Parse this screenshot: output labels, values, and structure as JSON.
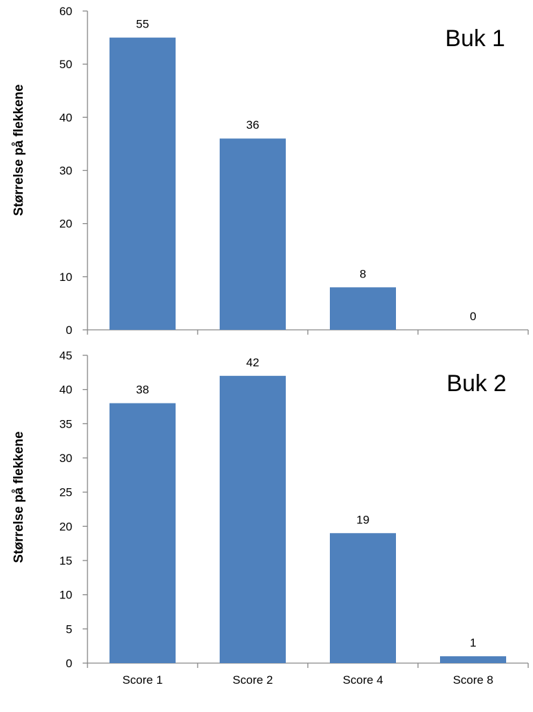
{
  "chart_data": [
    {
      "type": "bar",
      "title": "Buk 1",
      "ylabel": "Størrelse på flekkene",
      "xlabel": "",
      "categories": [
        "Score 1",
        "Score 2",
        "Score 4",
        "Score 8"
      ],
      "values": [
        55,
        36,
        8,
        0
      ],
      "ylim": [
        0,
        60
      ],
      "yticks": [
        0,
        10,
        20,
        30,
        40,
        50,
        60
      ],
      "show_category_labels": false,
      "grid": false,
      "color": "#4f81bd"
    },
    {
      "type": "bar",
      "title": "Buk 2",
      "ylabel": "Størrelse på flekkene",
      "xlabel": "",
      "categories": [
        "Score 1",
        "Score 2",
        "Score 4",
        "Score 8"
      ],
      "values": [
        38,
        42,
        19,
        1
      ],
      "ylim": [
        0,
        45
      ],
      "yticks": [
        0,
        5,
        10,
        15,
        20,
        25,
        30,
        35,
        40,
        45
      ],
      "show_category_labels": true,
      "grid": false,
      "color": "#4f81bd"
    }
  ]
}
